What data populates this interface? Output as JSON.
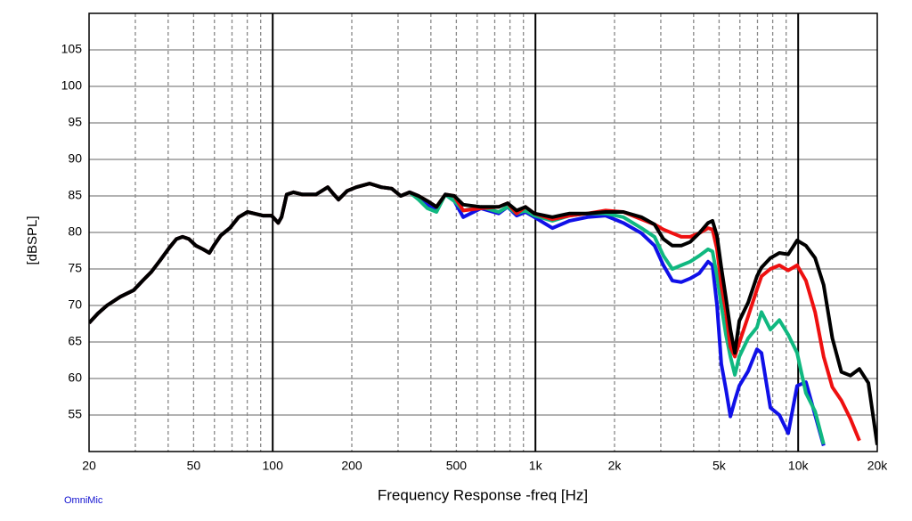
{
  "chart_data": {
    "type": "line",
    "xlabel": "Frequency Response -freq [Hz]",
    "ylabel": "[dBSPL]",
    "annotation": "OmniMic",
    "log_x": true,
    "xlim": [
      20,
      20000
    ],
    "ylim": [
      50,
      110
    ],
    "xticks": [
      20,
      50,
      100,
      200,
      500,
      {
        "value": 1000,
        "label": "1k"
      },
      {
        "value": 2000,
        "label": "2k"
      },
      {
        "value": 5000,
        "label": "5k"
      },
      {
        "value": 10000,
        "label": "10k"
      },
      {
        "value": 20000,
        "label": "20k"
      }
    ],
    "yticks": [
      55,
      60,
      65,
      70,
      75,
      80,
      85,
      90,
      95,
      100,
      105
    ],
    "grid": true,
    "xgrid_major": [
      100,
      1000,
      10000
    ],
    "xgrid_minor": [
      30,
      40,
      50,
      60,
      70,
      80,
      90,
      200,
      300,
      400,
      500,
      600,
      700,
      800,
      900,
      2000,
      3000,
      4000,
      5000,
      6000,
      7000,
      8000,
      9000
    ],
    "x": [
      20,
      21.6,
      23.4,
      26.3,
      29.6,
      32,
      34.5,
      37.3,
      40.4,
      43,
      45.4,
      48,
      51,
      54.3,
      57.4,
      59.7,
      63.5,
      68.7,
      74.2,
      80.2,
      84.8,
      91.6,
      99.1,
      105,
      108,
      113,
      120,
      130,
      146,
      162,
      171,
      178,
      192,
      208,
      234,
      259,
      284,
      307,
      332,
      359,
      388,
      420,
      454,
      491,
      531,
      620,
      725,
      784,
      848,
      916,
      991,
      1160,
      1350,
      1580,
      1850,
      2160,
      2530,
      2840,
      3070,
      3320,
      3590,
      3880,
      4200,
      4540,
      4720,
      4910,
      5100,
      5310,
      5520,
      5740,
      5970,
      6450,
      6970,
      7250,
      7840,
      8480,
      9160,
      9910,
      10700,
      11600,
      12500,
      13500,
      14600,
      15800,
      17100,
      18500,
      20000
    ],
    "series": [
      {
        "color": "#1010e8",
        "values": [
          67.6,
          68.9,
          70.0,
          71.2,
          72.1,
          73.4,
          74.6,
          76.2,
          77.9,
          79.1,
          79.4,
          79.1,
          78.2,
          77.7,
          77.2,
          78.2,
          79.6,
          80.6,
          82.1,
          82.8,
          82.6,
          82.3,
          82.3,
          81.3,
          82.1,
          85.2,
          85.5,
          85.2,
          85.2,
          86.2,
          85.2,
          84.5,
          85.7,
          86.2,
          86.7,
          86.2,
          86.0,
          85.0,
          85.5,
          85.0,
          83.8,
          83.3,
          85.2,
          84.3,
          82.1,
          83.3,
          82.6,
          83.5,
          82.3,
          82.8,
          82.1,
          80.6,
          81.6,
          82.1,
          82.3,
          81.3,
          79.9,
          78.2,
          75.5,
          73.4,
          73.2,
          73.7,
          74.4,
          76.0,
          75.5,
          70.0,
          62.0,
          58.5,
          54.8,
          57.0,
          59.0,
          61.0,
          64.0,
          63.5,
          56.0,
          55.0,
          52.5,
          59.0,
          59.5,
          55.0,
          50.8,
          null,
          null,
          null,
          null,
          null,
          null
        ]
      },
      {
        "color": "#10b880",
        "values": [
          67.6,
          68.9,
          70.0,
          71.2,
          72.1,
          73.4,
          74.6,
          76.2,
          77.9,
          79.1,
          79.4,
          79.1,
          78.2,
          77.7,
          77.2,
          78.2,
          79.6,
          80.6,
          82.1,
          82.8,
          82.6,
          82.3,
          82.3,
          81.3,
          82.1,
          85.2,
          85.5,
          85.2,
          85.2,
          86.2,
          85.2,
          84.5,
          85.7,
          86.2,
          86.7,
          86.2,
          86.0,
          85.0,
          85.5,
          84.5,
          83.3,
          82.8,
          85.2,
          84.3,
          83.0,
          83.5,
          82.8,
          83.5,
          82.6,
          83.0,
          82.3,
          81.6,
          82.3,
          82.6,
          82.6,
          82.1,
          80.6,
          79.4,
          76.8,
          75.0,
          75.5,
          76.0,
          76.8,
          77.7,
          77.4,
          74.0,
          70.0,
          66.0,
          63.0,
          60.5,
          63.0,
          65.5,
          67.0,
          69.1,
          66.7,
          68.0,
          66.0,
          63.5,
          58.0,
          55.5,
          51.0,
          null,
          null,
          null,
          null,
          null,
          null
        ]
      },
      {
        "color": "#ee1010",
        "values": [
          67.6,
          68.9,
          70.0,
          71.2,
          72.1,
          73.4,
          74.6,
          76.2,
          77.9,
          79.1,
          79.4,
          79.1,
          78.2,
          77.7,
          77.2,
          78.2,
          79.6,
          80.6,
          82.1,
          82.8,
          82.6,
          82.3,
          82.3,
          81.3,
          82.1,
          85.2,
          85.5,
          85.2,
          85.2,
          86.2,
          85.2,
          84.5,
          85.7,
          86.2,
          86.7,
          86.2,
          86.0,
          85.0,
          85.5,
          85.0,
          84.3,
          83.5,
          85.2,
          85.0,
          83.0,
          83.3,
          83.5,
          84.0,
          82.6,
          83.5,
          82.6,
          81.8,
          82.3,
          82.6,
          83.0,
          82.8,
          81.8,
          81.1,
          80.4,
          79.9,
          79.4,
          79.4,
          79.9,
          80.6,
          80.4,
          77.7,
          72.8,
          69.1,
          64.3,
          63.0,
          64.9,
          68.5,
          72.2,
          74.0,
          75.0,
          75.5,
          74.8,
          75.5,
          73.4,
          69.1,
          63.0,
          58.8,
          57.0,
          54.5,
          51.5,
          null,
          null
        ]
      },
      {
        "color": "#000000",
        "values": [
          67.6,
          68.9,
          70.0,
          71.2,
          72.1,
          73.4,
          74.6,
          76.2,
          77.9,
          79.1,
          79.4,
          79.1,
          78.2,
          77.7,
          77.2,
          78.2,
          79.6,
          80.6,
          82.1,
          82.8,
          82.6,
          82.3,
          82.3,
          81.3,
          82.1,
          85.2,
          85.5,
          85.2,
          85.2,
          86.2,
          85.2,
          84.5,
          85.7,
          86.2,
          86.7,
          86.2,
          86.0,
          85.0,
          85.5,
          85.0,
          84.3,
          83.5,
          85.2,
          85.0,
          83.8,
          83.5,
          83.5,
          84.0,
          83.0,
          83.5,
          82.6,
          82.1,
          82.6,
          82.6,
          82.8,
          82.8,
          82.1,
          81.1,
          79.1,
          78.2,
          78.2,
          78.7,
          79.9,
          81.3,
          81.6,
          79.5,
          75.2,
          71.0,
          66.7,
          63.5,
          67.9,
          70.4,
          74.0,
          75.2,
          76.5,
          77.2,
          77.0,
          78.9,
          78.2,
          76.5,
          72.8,
          65.5,
          60.9,
          60.4,
          61.3,
          59.4,
          50.9
        ]
      }
    ]
  }
}
